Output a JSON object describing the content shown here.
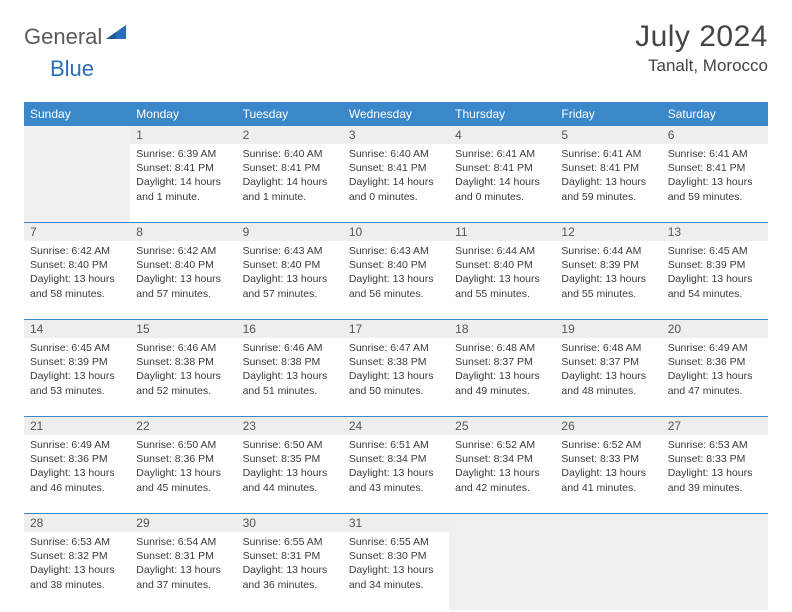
{
  "logo": {
    "part1": "General",
    "part2": "Blue"
  },
  "title": "July 2024",
  "location": "Tanalt, Morocco",
  "colors": {
    "header_bg": "#3a87c9",
    "header_text": "#ffffff",
    "week_border": "#3a87c9",
    "empty_bg": "#f0f0f0",
    "daynum_bg": "#eeeeee",
    "text": "#3a3a3a",
    "logo_gray": "#5a5a5a",
    "logo_blue": "#2a6fb5"
  },
  "day_names": [
    "Sunday",
    "Monday",
    "Tuesday",
    "Wednesday",
    "Thursday",
    "Friday",
    "Saturday"
  ],
  "weeks": [
    [
      {
        "empty": true
      },
      {
        "day": "1",
        "sunrise": "Sunrise: 6:39 AM",
        "sunset": "Sunset: 8:41 PM",
        "daylight": "Daylight: 14 hours and 1 minute."
      },
      {
        "day": "2",
        "sunrise": "Sunrise: 6:40 AM",
        "sunset": "Sunset: 8:41 PM",
        "daylight": "Daylight: 14 hours and 1 minute."
      },
      {
        "day": "3",
        "sunrise": "Sunrise: 6:40 AM",
        "sunset": "Sunset: 8:41 PM",
        "daylight": "Daylight: 14 hours and 0 minutes."
      },
      {
        "day": "4",
        "sunrise": "Sunrise: 6:41 AM",
        "sunset": "Sunset: 8:41 PM",
        "daylight": "Daylight: 14 hours and 0 minutes."
      },
      {
        "day": "5",
        "sunrise": "Sunrise: 6:41 AM",
        "sunset": "Sunset: 8:41 PM",
        "daylight": "Daylight: 13 hours and 59 minutes."
      },
      {
        "day": "6",
        "sunrise": "Sunrise: 6:41 AM",
        "sunset": "Sunset: 8:41 PM",
        "daylight": "Daylight: 13 hours and 59 minutes."
      }
    ],
    [
      {
        "day": "7",
        "sunrise": "Sunrise: 6:42 AM",
        "sunset": "Sunset: 8:40 PM",
        "daylight": "Daylight: 13 hours and 58 minutes."
      },
      {
        "day": "8",
        "sunrise": "Sunrise: 6:42 AM",
        "sunset": "Sunset: 8:40 PM",
        "daylight": "Daylight: 13 hours and 57 minutes."
      },
      {
        "day": "9",
        "sunrise": "Sunrise: 6:43 AM",
        "sunset": "Sunset: 8:40 PM",
        "daylight": "Daylight: 13 hours and 57 minutes."
      },
      {
        "day": "10",
        "sunrise": "Sunrise: 6:43 AM",
        "sunset": "Sunset: 8:40 PM",
        "daylight": "Daylight: 13 hours and 56 minutes."
      },
      {
        "day": "11",
        "sunrise": "Sunrise: 6:44 AM",
        "sunset": "Sunset: 8:40 PM",
        "daylight": "Daylight: 13 hours and 55 minutes."
      },
      {
        "day": "12",
        "sunrise": "Sunrise: 6:44 AM",
        "sunset": "Sunset: 8:39 PM",
        "daylight": "Daylight: 13 hours and 55 minutes."
      },
      {
        "day": "13",
        "sunrise": "Sunrise: 6:45 AM",
        "sunset": "Sunset: 8:39 PM",
        "daylight": "Daylight: 13 hours and 54 minutes."
      }
    ],
    [
      {
        "day": "14",
        "sunrise": "Sunrise: 6:45 AM",
        "sunset": "Sunset: 8:39 PM",
        "daylight": "Daylight: 13 hours and 53 minutes."
      },
      {
        "day": "15",
        "sunrise": "Sunrise: 6:46 AM",
        "sunset": "Sunset: 8:38 PM",
        "daylight": "Daylight: 13 hours and 52 minutes."
      },
      {
        "day": "16",
        "sunrise": "Sunrise: 6:46 AM",
        "sunset": "Sunset: 8:38 PM",
        "daylight": "Daylight: 13 hours and 51 minutes."
      },
      {
        "day": "17",
        "sunrise": "Sunrise: 6:47 AM",
        "sunset": "Sunset: 8:38 PM",
        "daylight": "Daylight: 13 hours and 50 minutes."
      },
      {
        "day": "18",
        "sunrise": "Sunrise: 6:48 AM",
        "sunset": "Sunset: 8:37 PM",
        "daylight": "Daylight: 13 hours and 49 minutes."
      },
      {
        "day": "19",
        "sunrise": "Sunrise: 6:48 AM",
        "sunset": "Sunset: 8:37 PM",
        "daylight": "Daylight: 13 hours and 48 minutes."
      },
      {
        "day": "20",
        "sunrise": "Sunrise: 6:49 AM",
        "sunset": "Sunset: 8:36 PM",
        "daylight": "Daylight: 13 hours and 47 minutes."
      }
    ],
    [
      {
        "day": "21",
        "sunrise": "Sunrise: 6:49 AM",
        "sunset": "Sunset: 8:36 PM",
        "daylight": "Daylight: 13 hours and 46 minutes."
      },
      {
        "day": "22",
        "sunrise": "Sunrise: 6:50 AM",
        "sunset": "Sunset: 8:36 PM",
        "daylight": "Daylight: 13 hours and 45 minutes."
      },
      {
        "day": "23",
        "sunrise": "Sunrise: 6:50 AM",
        "sunset": "Sunset: 8:35 PM",
        "daylight": "Daylight: 13 hours and 44 minutes."
      },
      {
        "day": "24",
        "sunrise": "Sunrise: 6:51 AM",
        "sunset": "Sunset: 8:34 PM",
        "daylight": "Daylight: 13 hours and 43 minutes."
      },
      {
        "day": "25",
        "sunrise": "Sunrise: 6:52 AM",
        "sunset": "Sunset: 8:34 PM",
        "daylight": "Daylight: 13 hours and 42 minutes."
      },
      {
        "day": "26",
        "sunrise": "Sunrise: 6:52 AM",
        "sunset": "Sunset: 8:33 PM",
        "daylight": "Daylight: 13 hours and 41 minutes."
      },
      {
        "day": "27",
        "sunrise": "Sunrise: 6:53 AM",
        "sunset": "Sunset: 8:33 PM",
        "daylight": "Daylight: 13 hours and 39 minutes."
      }
    ],
    [
      {
        "day": "28",
        "sunrise": "Sunrise: 6:53 AM",
        "sunset": "Sunset: 8:32 PM",
        "daylight": "Daylight: 13 hours and 38 minutes."
      },
      {
        "day": "29",
        "sunrise": "Sunrise: 6:54 AM",
        "sunset": "Sunset: 8:31 PM",
        "daylight": "Daylight: 13 hours and 37 minutes."
      },
      {
        "day": "30",
        "sunrise": "Sunrise: 6:55 AM",
        "sunset": "Sunset: 8:31 PM",
        "daylight": "Daylight: 13 hours and 36 minutes."
      },
      {
        "day": "31",
        "sunrise": "Sunrise: 6:55 AM",
        "sunset": "Sunset: 8:30 PM",
        "daylight": "Daylight: 13 hours and 34 minutes."
      },
      {
        "empty": true
      },
      {
        "empty": true
      },
      {
        "empty": true
      }
    ]
  ]
}
